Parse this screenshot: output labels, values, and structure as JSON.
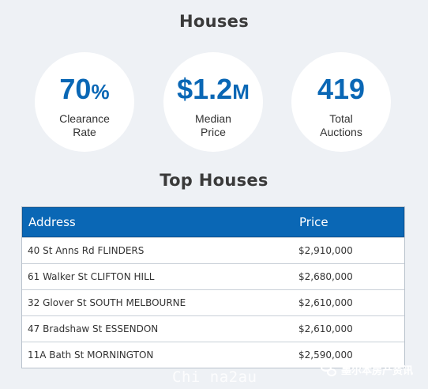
{
  "houses_title": "Houses",
  "stats": [
    {
      "value": "70",
      "suffix": "%",
      "label_line1": "Clearance",
      "label_line2": "Rate"
    },
    {
      "value": "$1.2",
      "suffix": "M",
      "label_line1": "Median",
      "label_line2": "Price"
    },
    {
      "value": "419",
      "suffix": "",
      "label_line1": "Total",
      "label_line2": "Auctions"
    }
  ],
  "top_houses_title": "Top Houses",
  "table": {
    "headers": {
      "address": "Address",
      "price": "Price"
    },
    "rows": [
      {
        "address": "40 St Anns Rd FLINDERS",
        "price": "$2,910,000"
      },
      {
        "address": "61 Walker St CLIFTON HILL",
        "price": "$2,680,000"
      },
      {
        "address": "32 Glover St SOUTH MELBOURNE",
        "price": "$2,610,000"
      },
      {
        "address": "47 Bradshaw St ESSENDON",
        "price": "$2,610,000"
      },
      {
        "address": "11A Bath St MORNINGTON",
        "price": "$2,590,000"
      }
    ]
  },
  "watermarks": {
    "center": "Chi na2au",
    "right": "墨尔本房产资讯",
    "right_icon": "wechat-icon"
  },
  "colors": {
    "accent": "#0a67b5",
    "background": "#eef1f5"
  }
}
